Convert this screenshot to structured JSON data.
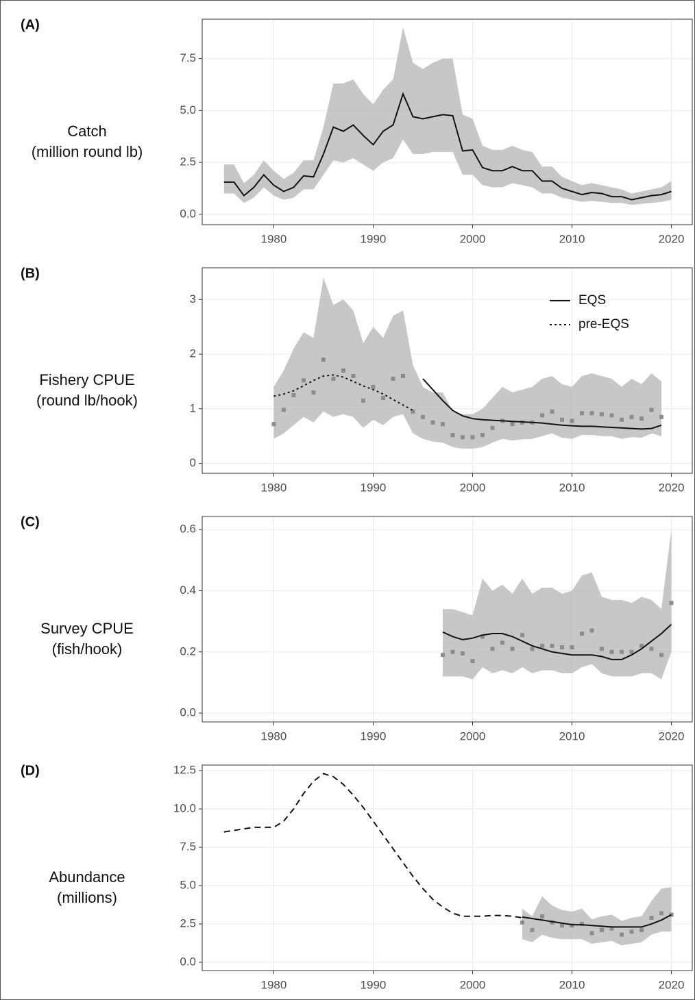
{
  "chart_data": [
    {
      "type": "line",
      "panel_label": "(A)",
      "ylabel": [
        "Catch",
        "(million round lb)"
      ],
      "x": [
        1975,
        1976,
        1977,
        1978,
        1979,
        1980,
        1981,
        1982,
        1983,
        1984,
        1985,
        1986,
        1987,
        1988,
        1989,
        1990,
        1991,
        1992,
        1993,
        1994,
        1995,
        1996,
        1997,
        1998,
        1999,
        2000,
        2001,
        2002,
        2003,
        2004,
        2005,
        2006,
        2007,
        2008,
        2009,
        2010,
        2011,
        2012,
        2013,
        2014,
        2015,
        2016,
        2017,
        2018,
        2019,
        2020
      ],
      "xlim": [
        1972.8,
        2022.1
      ],
      "xticks": [
        1980,
        1990,
        2000,
        2010,
        2020
      ],
      "ylim": [
        -0.5,
        9.4
      ],
      "yticks": [
        {
          "value": 0,
          "label": "0.0"
        },
        2.5,
        {
          "value": 5,
          "label": "5.0"
        },
        7.5
      ],
      "grid": true,
      "series": [
        {
          "mark": "ribbon",
          "color": "#bdbdbd",
          "upper": [
            2.4,
            2.4,
            1.5,
            1.9,
            2.6,
            2.1,
            1.7,
            2.0,
            2.6,
            2.6,
            4.2,
            6.3,
            6.3,
            6.5,
            5.8,
            5.3,
            6.0,
            6.5,
            9.0,
            7.3,
            7.0,
            7.3,
            7.5,
            7.5,
            4.8,
            4.6,
            3.3,
            3.1,
            3.1,
            3.3,
            3.1,
            3.0,
            2.3,
            2.3,
            1.8,
            1.6,
            1.4,
            1.5,
            1.4,
            1.3,
            1.2,
            1.0,
            1.1,
            1.2,
            1.3,
            1.6
          ],
          "lower": [
            1.0,
            1.0,
            0.55,
            0.8,
            1.3,
            0.9,
            0.7,
            0.8,
            1.2,
            1.2,
            1.9,
            2.6,
            2.5,
            2.7,
            2.4,
            2.1,
            2.5,
            2.7,
            3.6,
            2.9,
            2.9,
            3.0,
            3.0,
            3.0,
            1.9,
            1.9,
            1.4,
            1.3,
            1.3,
            1.5,
            1.4,
            1.3,
            1.0,
            1.0,
            0.8,
            0.7,
            0.6,
            0.65,
            0.6,
            0.55,
            0.55,
            0.45,
            0.5,
            0.55,
            0.6,
            0.7
          ]
        },
        {
          "mark": "line",
          "color": "#111111",
          "dash": "solid",
          "values": [
            1.55,
            1.55,
            0.9,
            1.3,
            1.9,
            1.4,
            1.1,
            1.3,
            1.85,
            1.8,
            2.9,
            4.2,
            4.0,
            4.3,
            3.8,
            3.35,
            4.0,
            4.3,
            5.8,
            4.7,
            4.6,
            4.7,
            4.8,
            4.75,
            3.05,
            3.1,
            2.25,
            2.1,
            2.1,
            2.3,
            2.1,
            2.1,
            1.6,
            1.6,
            1.25,
            1.1,
            0.95,
            1.05,
            1.0,
            0.85,
            0.85,
            0.7,
            0.8,
            0.9,
            0.95,
            1.1
          ]
        }
      ]
    },
    {
      "type": "line",
      "panel_label": "(B)",
      "ylabel": [
        "Fishery CPUE",
        "(round lb/hook)"
      ],
      "x": [
        1980,
        1981,
        1982,
        1983,
        1984,
        1985,
        1986,
        1987,
        1988,
        1989,
        1990,
        1991,
        1992,
        1993,
        1994,
        1995,
        1996,
        1997,
        1998,
        1999,
        2000,
        2001,
        2002,
        2003,
        2004,
        2005,
        2006,
        2007,
        2008,
        2009,
        2010,
        2011,
        2012,
        2013,
        2014,
        2015,
        2016,
        2017,
        2018,
        2019
      ],
      "xlim": [
        1972.8,
        2022.1
      ],
      "xticks": [
        1980,
        1990,
        2000,
        2010,
        2020
      ],
      "ylim": [
        -0.18,
        3.58
      ],
      "yticks": [
        0,
        1,
        2,
        3
      ],
      "grid": true,
      "legend": "upper right",
      "series": [
        {
          "mark": "ribbon",
          "color": "#bdbdbd",
          "upper": [
            1.4,
            1.7,
            2.1,
            2.4,
            2.3,
            3.4,
            2.9,
            3.0,
            2.8,
            2.2,
            2.5,
            2.3,
            2.7,
            2.8,
            1.8,
            1.4,
            1.3,
            1.3,
            0.95,
            0.9,
            0.9,
            1.0,
            1.2,
            1.4,
            1.3,
            1.35,
            1.4,
            1.55,
            1.6,
            1.45,
            1.4,
            1.6,
            1.65,
            1.6,
            1.55,
            1.4,
            1.55,
            1.45,
            1.65,
            1.5
          ],
          "lower": [
            0.45,
            0.55,
            0.7,
            0.85,
            0.75,
            0.95,
            0.85,
            0.9,
            0.85,
            0.65,
            0.8,
            0.7,
            0.85,
            0.9,
            0.55,
            0.45,
            0.4,
            0.38,
            0.3,
            0.27,
            0.27,
            0.3,
            0.38,
            0.45,
            0.42,
            0.44,
            0.45,
            0.5,
            0.55,
            0.47,
            0.45,
            0.52,
            0.52,
            0.5,
            0.5,
            0.45,
            0.48,
            0.47,
            0.55,
            0.5
          ]
        },
        {
          "mark": "points",
          "color": "#8c8c8c",
          "values": [
            0.72,
            0.98,
            1.25,
            1.52,
            1.3,
            1.9,
            1.55,
            1.7,
            1.6,
            1.15,
            1.4,
            1.2,
            1.55,
            1.6,
            0.95,
            0.85,
            0.75,
            0.72,
            0.52,
            0.48,
            0.48,
            0.52,
            0.65,
            0.78,
            0.72,
            0.75,
            0.75,
            0.88,
            0.95,
            0.8,
            0.78,
            0.92,
            0.92,
            0.9,
            0.88,
            0.8,
            0.85,
            0.82,
            0.98,
            0.85
          ]
        },
        {
          "mark": "line",
          "name": "EQS",
          "color": "#111111",
          "dash": "solid",
          "values": [
            null,
            null,
            null,
            null,
            null,
            null,
            null,
            null,
            null,
            null,
            null,
            null,
            null,
            null,
            null,
            1.55,
            1.35,
            1.15,
            0.97,
            0.87,
            0.82,
            0.8,
            0.79,
            0.78,
            0.77,
            0.76,
            0.75,
            0.74,
            0.72,
            0.7,
            0.69,
            0.68,
            0.68,
            0.67,
            0.66,
            0.65,
            0.64,
            0.63,
            0.64,
            0.7
          ]
        },
        {
          "mark": "line",
          "name": "pre-EQS",
          "color": "#111111",
          "dash": "dotted",
          "values": [
            1.23,
            1.27,
            1.33,
            1.42,
            1.52,
            1.6,
            1.62,
            1.58,
            1.5,
            1.42,
            1.35,
            1.27,
            1.17,
            1.07,
            0.97,
            null,
            null,
            null,
            null,
            null,
            null,
            null,
            null,
            null,
            null,
            null,
            null,
            null,
            null,
            null,
            null,
            null,
            null,
            null,
            null,
            null,
            null,
            null,
            null,
            null
          ]
        }
      ]
    },
    {
      "type": "line",
      "panel_label": "(C)",
      "ylabel": [
        "Survey CPUE",
        "(fish/hook)"
      ],
      "x": [
        1997,
        1998,
        1999,
        2000,
        2001,
        2002,
        2003,
        2004,
        2005,
        2006,
        2007,
        2008,
        2009,
        2010,
        2011,
        2012,
        2013,
        2014,
        2015,
        2016,
        2017,
        2018,
        2019,
        2020
      ],
      "xlim": [
        1972.8,
        2022.1
      ],
      "xticks": [
        1980,
        1990,
        2000,
        2010,
        2020
      ],
      "ylim": [
        -0.029,
        0.643
      ],
      "yticks": [
        {
          "value": 0,
          "label": "0.0"
        },
        0.2,
        0.4,
        0.6
      ],
      "grid": true,
      "series": [
        {
          "mark": "ribbon",
          "color": "#bdbdbd",
          "upper": [
            0.34,
            0.34,
            0.33,
            0.32,
            0.44,
            0.4,
            0.42,
            0.39,
            0.44,
            0.39,
            0.41,
            0.41,
            0.39,
            0.4,
            0.45,
            0.46,
            0.38,
            0.37,
            0.37,
            0.36,
            0.38,
            0.37,
            0.34,
            0.6
          ],
          "lower": [
            0.12,
            0.12,
            0.12,
            0.11,
            0.15,
            0.13,
            0.14,
            0.13,
            0.15,
            0.13,
            0.14,
            0.14,
            0.13,
            0.13,
            0.15,
            0.16,
            0.13,
            0.12,
            0.12,
            0.12,
            0.13,
            0.13,
            0.11,
            0.2
          ]
        },
        {
          "mark": "points",
          "color": "#8c8c8c",
          "values": [
            0.19,
            0.2,
            0.195,
            0.17,
            0.25,
            0.21,
            0.23,
            0.21,
            0.255,
            0.21,
            0.22,
            0.22,
            0.215,
            0.215,
            0.26,
            0.27,
            0.21,
            0.2,
            0.2,
            0.2,
            0.22,
            0.21,
            0.19,
            0.36
          ]
        },
        {
          "mark": "line",
          "color": "#111111",
          "dash": "solid",
          "values": [
            0.265,
            0.25,
            0.24,
            0.245,
            0.255,
            0.26,
            0.26,
            0.25,
            0.235,
            0.22,
            0.21,
            0.2,
            0.195,
            0.19,
            0.19,
            0.19,
            0.185,
            0.175,
            0.175,
            0.19,
            0.21,
            0.235,
            0.26,
            0.29
          ]
        }
      ]
    },
    {
      "type": "line",
      "panel_label": "(D)",
      "ylabel": [
        "Abundance",
        "(millions)"
      ],
      "x": [
        1975,
        1976,
        1977,
        1978,
        1979,
        1980,
        1981,
        1982,
        1983,
        1984,
        1985,
        1986,
        1987,
        1988,
        1989,
        1990,
        1991,
        1992,
        1993,
        1994,
        1995,
        1996,
        1997,
        1998,
        1999,
        2000,
        2001,
        2002,
        2003,
        2004,
        2005,
        2006,
        2007,
        2008,
        2009,
        2010,
        2011,
        2012,
        2013,
        2014,
        2015,
        2016,
        2017,
        2018,
        2019,
        2020
      ],
      "xlim": [
        1972.8,
        2022.1
      ],
      "xticks": [
        1980,
        1990,
        2000,
        2010,
        2020
      ],
      "ylim": [
        -0.54,
        12.86
      ],
      "yticks": [
        {
          "value": 0,
          "label": "0.0"
        },
        2.5,
        {
          "value": 5,
          "label": "5.0"
        },
        7.5,
        {
          "value": 10,
          "label": "10.0"
        },
        12.5
      ],
      "grid": true,
      "series": [
        {
          "mark": "ribbon",
          "color": "#bdbdbd",
          "upper": [
            null,
            null,
            null,
            null,
            null,
            null,
            null,
            null,
            null,
            null,
            null,
            null,
            null,
            null,
            null,
            null,
            null,
            null,
            null,
            null,
            null,
            null,
            null,
            null,
            null,
            null,
            null,
            null,
            null,
            null,
            3.5,
            3.0,
            4.3,
            3.7,
            3.4,
            3.3,
            3.5,
            2.8,
            3.0,
            3.1,
            2.7,
            2.9,
            3.0,
            4.0,
            4.8,
            4.9
          ],
          "lower": [
            null,
            null,
            null,
            null,
            null,
            null,
            null,
            null,
            null,
            null,
            null,
            null,
            null,
            null,
            null,
            null,
            null,
            null,
            null,
            null,
            null,
            null,
            null,
            null,
            null,
            null,
            null,
            null,
            null,
            null,
            1.5,
            1.3,
            1.8,
            1.6,
            1.5,
            1.5,
            1.5,
            1.2,
            1.3,
            1.4,
            1.1,
            1.2,
            1.3,
            1.8,
            2.0,
            2.0
          ]
        },
        {
          "mark": "points",
          "color": "#8c8c8c",
          "values": [
            null,
            null,
            null,
            null,
            null,
            null,
            null,
            null,
            null,
            null,
            null,
            null,
            null,
            null,
            null,
            null,
            null,
            null,
            null,
            null,
            null,
            null,
            null,
            null,
            null,
            null,
            null,
            null,
            null,
            null,
            2.6,
            2.1,
            3.0,
            2.6,
            2.4,
            2.4,
            2.5,
            1.9,
            2.1,
            2.2,
            1.8,
            2.0,
            2.1,
            2.9,
            3.2,
            3.1
          ]
        },
        {
          "mark": "line",
          "color": "#111111",
          "dash": "solid",
          "values": [
            null,
            null,
            null,
            null,
            null,
            null,
            null,
            null,
            null,
            null,
            null,
            null,
            null,
            null,
            null,
            null,
            null,
            null,
            null,
            null,
            null,
            null,
            null,
            null,
            null,
            null,
            null,
            null,
            null,
            null,
            2.95,
            2.85,
            2.75,
            2.65,
            2.55,
            2.45,
            2.45,
            2.4,
            2.35,
            2.3,
            2.3,
            2.3,
            2.3,
            2.5,
            2.75,
            3.1
          ]
        },
        {
          "mark": "line",
          "color": "#111111",
          "dash": "dashed",
          "values": [
            8.5,
            8.6,
            8.7,
            8.8,
            8.8,
            8.8,
            9.2,
            10.0,
            11.0,
            11.8,
            12.3,
            12.1,
            11.6,
            10.9,
            10.1,
            9.2,
            8.3,
            7.4,
            6.5,
            5.6,
            4.8,
            4.1,
            3.6,
            3.2,
            3.0,
            3.0,
            3.0,
            3.05,
            3.05,
            3.0,
            2.9,
            null,
            null,
            null,
            null,
            null,
            null,
            null,
            null,
            null,
            null,
            null,
            null,
            null,
            null,
            null
          ]
        }
      ]
    }
  ]
}
